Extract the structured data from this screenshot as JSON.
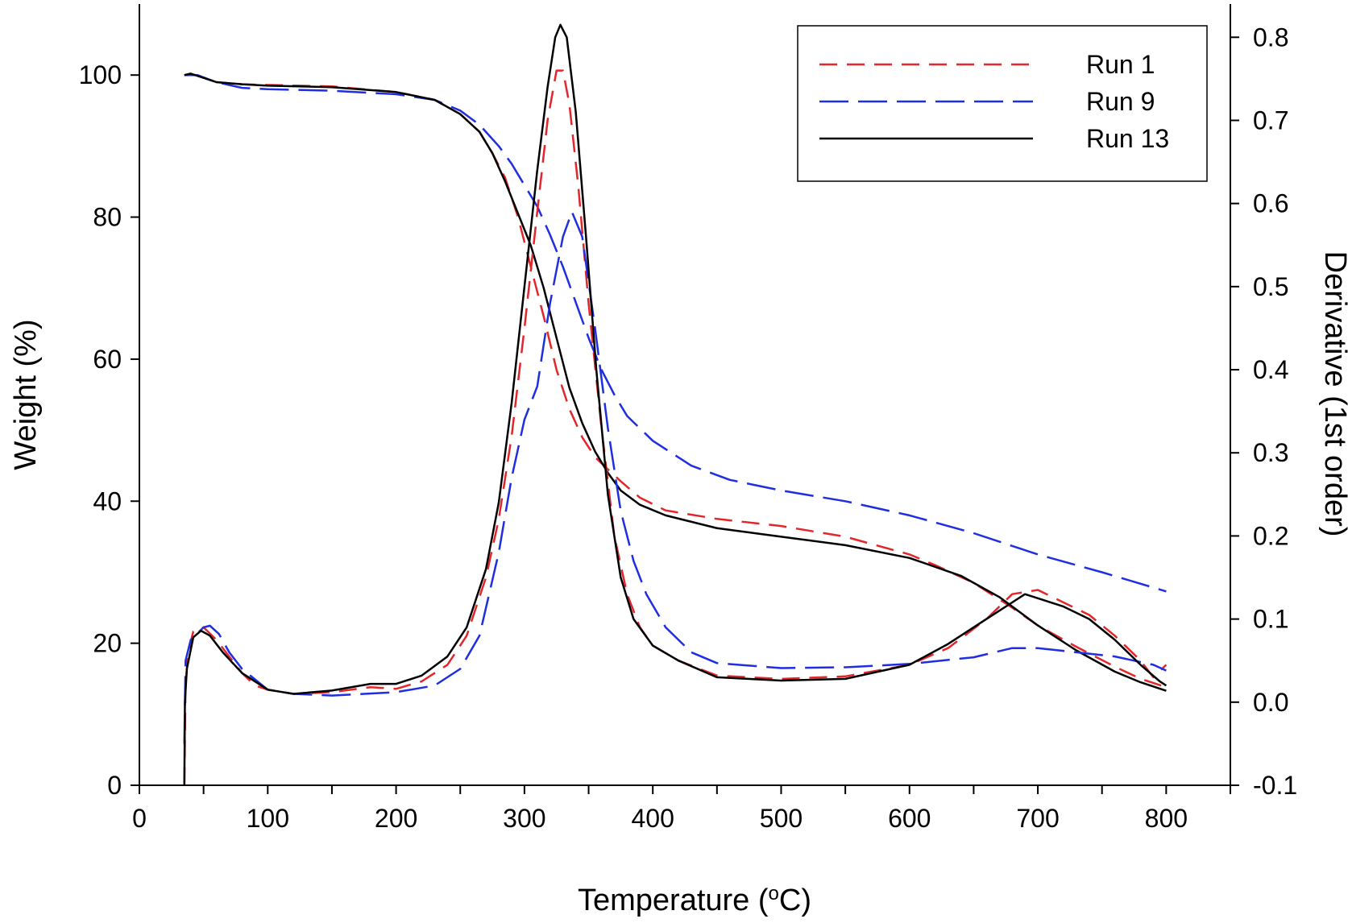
{
  "chart_data": {
    "type": "line",
    "title": "",
    "xlabel_base": "Temperature (",
    "xlabel_sup": "o",
    "xlabel_tail": "C)",
    "ylabel": "Weight (%)",
    "y2label": "Derivative (1st order)",
    "xlim": [
      0,
      850
    ],
    "ylim": [
      0,
      110
    ],
    "y2lim": [
      -0.1,
      0.84
    ],
    "x_ticks": [
      "0",
      "100",
      "200",
      "300",
      "400",
      "500",
      "600",
      "700",
      "800"
    ],
    "y_ticks": [
      "0",
      "20",
      "40",
      "60",
      "80",
      "100"
    ],
    "y2_ticks": [
      "-0.1",
      "0.0",
      "0.1",
      "0.2",
      "0.3",
      "0.4",
      "0.5",
      "0.6",
      "0.7",
      "0.8"
    ],
    "grid": false,
    "legend_position": "top-right",
    "legend": [
      {
        "name": "Run 1",
        "color": "#e3262b",
        "dash": "dash"
      },
      {
        "name": "Run 9",
        "color": "#1f2ee0",
        "dash": "longdash"
      },
      {
        "name": "Run 13",
        "color": "#000000",
        "dash": "solid"
      }
    ],
    "series": [
      {
        "name": "Run 1",
        "kind": "weight",
        "axis": "left",
        "points": [
          [
            35,
            100
          ],
          [
            45,
            100
          ],
          [
            60,
            99
          ],
          [
            80,
            98.7
          ],
          [
            100,
            98.6
          ],
          [
            150,
            98.4
          ],
          [
            200,
            97.6
          ],
          [
            230,
            96.5
          ],
          [
            250,
            94.5
          ],
          [
            265,
            92
          ],
          [
            275,
            89
          ],
          [
            285,
            85.5
          ],
          [
            295,
            80
          ],
          [
            305,
            73
          ],
          [
            315,
            66
          ],
          [
            325,
            58.5
          ],
          [
            335,
            53
          ],
          [
            345,
            49
          ],
          [
            355,
            46.2
          ],
          [
            365,
            44.5
          ],
          [
            375,
            42.8
          ],
          [
            390,
            40.5
          ],
          [
            410,
            38.7
          ],
          [
            450,
            37.5
          ],
          [
            500,
            36.5
          ],
          [
            550,
            35
          ],
          [
            600,
            32.5
          ],
          [
            620,
            31
          ],
          [
            650,
            28.5
          ],
          [
            680,
            25
          ],
          [
            700,
            22.5
          ],
          [
            730,
            19.5
          ],
          [
            760,
            16.7
          ],
          [
            780,
            15
          ],
          [
            800,
            13.8
          ]
        ]
      },
      {
        "name": "Run 9",
        "kind": "weight",
        "axis": "left",
        "points": [
          [
            35,
            100
          ],
          [
            45,
            100
          ],
          [
            60,
            99
          ],
          [
            80,
            98.2
          ],
          [
            100,
            98
          ],
          [
            150,
            97.8
          ],
          [
            200,
            97.3
          ],
          [
            230,
            96.5
          ],
          [
            250,
            95
          ],
          [
            265,
            93
          ],
          [
            280,
            90
          ],
          [
            290,
            87.5
          ],
          [
            300,
            84.5
          ],
          [
            310,
            81.5
          ],
          [
            320,
            77.5
          ],
          [
            330,
            73
          ],
          [
            340,
            68
          ],
          [
            350,
            63
          ],
          [
            360,
            58.5
          ],
          [
            370,
            55
          ],
          [
            380,
            52
          ],
          [
            400,
            48.5
          ],
          [
            430,
            45
          ],
          [
            460,
            43
          ],
          [
            500,
            41.5
          ],
          [
            550,
            40
          ],
          [
            600,
            38
          ],
          [
            650,
            35.5
          ],
          [
            700,
            32.5
          ],
          [
            750,
            30
          ],
          [
            800,
            27.3
          ]
        ]
      },
      {
        "name": "Run 13",
        "kind": "weight",
        "axis": "left",
        "points": [
          [
            35,
            100
          ],
          [
            40,
            100.2
          ],
          [
            50,
            99.6
          ],
          [
            60,
            99
          ],
          [
            80,
            98.7
          ],
          [
            100,
            98.5
          ],
          [
            150,
            98.3
          ],
          [
            200,
            97.6
          ],
          [
            230,
            96.5
          ],
          [
            250,
            94.5
          ],
          [
            265,
            92
          ],
          [
            275,
            89
          ],
          [
            285,
            85
          ],
          [
            295,
            80.5
          ],
          [
            305,
            76
          ],
          [
            315,
            70
          ],
          [
            325,
            63
          ],
          [
            335,
            56
          ],
          [
            345,
            51
          ],
          [
            355,
            47
          ],
          [
            365,
            44
          ],
          [
            375,
            41.5
          ],
          [
            390,
            39.5
          ],
          [
            410,
            38
          ],
          [
            450,
            36.2
          ],
          [
            500,
            35
          ],
          [
            550,
            33.8
          ],
          [
            600,
            32
          ],
          [
            640,
            29.5
          ],
          [
            670,
            26.5
          ],
          [
            700,
            22.5
          ],
          [
            730,
            19
          ],
          [
            760,
            16
          ],
          [
            780,
            14.5
          ],
          [
            800,
            13.3
          ]
        ]
      },
      {
        "name": "Run 1",
        "kind": "derivative",
        "axis": "right",
        "points": [
          [
            35,
            -0.1
          ],
          [
            36,
            0.02
          ],
          [
            38,
            0.06
          ],
          [
            42,
            0.085
          ],
          [
            50,
            0.09
          ],
          [
            60,
            0.075
          ],
          [
            70,
            0.055
          ],
          [
            80,
            0.035
          ],
          [
            90,
            0.02
          ],
          [
            100,
            0.015
          ],
          [
            120,
            0.01
          ],
          [
            150,
            0.012
          ],
          [
            180,
            0.018
          ],
          [
            200,
            0.016
          ],
          [
            220,
            0.025
          ],
          [
            240,
            0.045
          ],
          [
            255,
            0.08
          ],
          [
            270,
            0.15
          ],
          [
            280,
            0.22
          ],
          [
            290,
            0.32
          ],
          [
            300,
            0.45
          ],
          [
            310,
            0.59
          ],
          [
            318,
            0.7
          ],
          [
            325,
            0.76
          ],
          [
            330,
            0.76
          ],
          [
            335,
            0.72
          ],
          [
            342,
            0.62
          ],
          [
            350,
            0.48
          ],
          [
            360,
            0.33
          ],
          [
            370,
            0.2
          ],
          [
            380,
            0.13
          ],
          [
            390,
            0.09
          ],
          [
            400,
            0.068
          ],
          [
            420,
            0.05
          ],
          [
            450,
            0.032
          ],
          [
            500,
            0.028
          ],
          [
            550,
            0.031
          ],
          [
            600,
            0.045
          ],
          [
            630,
            0.065
          ],
          [
            660,
            0.1
          ],
          [
            680,
            0.13
          ],
          [
            700,
            0.135
          ],
          [
            720,
            0.12
          ],
          [
            740,
            0.105
          ],
          [
            760,
            0.08
          ],
          [
            780,
            0.05
          ],
          [
            790,
            0.03
          ],
          [
            800,
            0.045
          ]
        ]
      },
      {
        "name": "Run 9",
        "kind": "derivative",
        "axis": "right",
        "points": [
          [
            35,
            -0.05
          ],
          [
            36,
            0.05
          ],
          [
            40,
            0.075
          ],
          [
            50,
            0.09
          ],
          [
            55,
            0.092
          ],
          [
            62,
            0.082
          ],
          [
            70,
            0.06
          ],
          [
            80,
            0.04
          ],
          [
            100,
            0.015
          ],
          [
            120,
            0.01
          ],
          [
            150,
            0.008
          ],
          [
            200,
            0.012
          ],
          [
            230,
            0.02
          ],
          [
            250,
            0.04
          ],
          [
            265,
            0.08
          ],
          [
            280,
            0.18
          ],
          [
            290,
            0.27
          ],
          [
            300,
            0.34
          ],
          [
            310,
            0.38
          ],
          [
            320,
            0.48
          ],
          [
            330,
            0.56
          ],
          [
            337,
            0.59
          ],
          [
            345,
            0.56
          ],
          [
            355,
            0.45
          ],
          [
            365,
            0.33
          ],
          [
            375,
            0.23
          ],
          [
            385,
            0.17
          ],
          [
            395,
            0.13
          ],
          [
            410,
            0.09
          ],
          [
            430,
            0.06
          ],
          [
            450,
            0.047
          ],
          [
            500,
            0.041
          ],
          [
            550,
            0.042
          ],
          [
            600,
            0.046
          ],
          [
            650,
            0.054
          ],
          [
            680,
            0.065
          ],
          [
            700,
            0.065
          ],
          [
            730,
            0.06
          ],
          [
            760,
            0.055
          ],
          [
            790,
            0.045
          ],
          [
            800,
            0.038
          ]
        ]
      },
      {
        "name": "Run 13",
        "kind": "derivative",
        "axis": "right",
        "points": [
          [
            35,
            -0.1
          ],
          [
            35.5,
            0.0
          ],
          [
            37,
            0.04
          ],
          [
            42,
            0.078
          ],
          [
            48,
            0.086
          ],
          [
            55,
            0.08
          ],
          [
            65,
            0.06
          ],
          [
            80,
            0.035
          ],
          [
            100,
            0.015
          ],
          [
            120,
            0.01
          ],
          [
            150,
            0.014
          ],
          [
            180,
            0.022
          ],
          [
            200,
            0.022
          ],
          [
            220,
            0.032
          ],
          [
            240,
            0.055
          ],
          [
            255,
            0.09
          ],
          [
            270,
            0.16
          ],
          [
            280,
            0.24
          ],
          [
            290,
            0.36
          ],
          [
            300,
            0.5
          ],
          [
            310,
            0.64
          ],
          [
            318,
            0.74
          ],
          [
            324,
            0.8
          ],
          [
            328,
            0.815
          ],
          [
            333,
            0.8
          ],
          [
            340,
            0.71
          ],
          [
            348,
            0.56
          ],
          [
            356,
            0.4
          ],
          [
            365,
            0.25
          ],
          [
            375,
            0.15
          ],
          [
            385,
            0.1
          ],
          [
            400,
            0.068
          ],
          [
            420,
            0.05
          ],
          [
            450,
            0.03
          ],
          [
            500,
            0.026
          ],
          [
            550,
            0.028
          ],
          [
            600,
            0.045
          ],
          [
            630,
            0.07
          ],
          [
            660,
            0.1
          ],
          [
            680,
            0.12
          ],
          [
            690,
            0.13
          ],
          [
            700,
            0.125
          ],
          [
            720,
            0.115
          ],
          [
            740,
            0.1
          ],
          [
            760,
            0.075
          ],
          [
            780,
            0.045
          ],
          [
            795,
            0.025
          ],
          [
            800,
            0.02
          ]
        ]
      }
    ]
  }
}
